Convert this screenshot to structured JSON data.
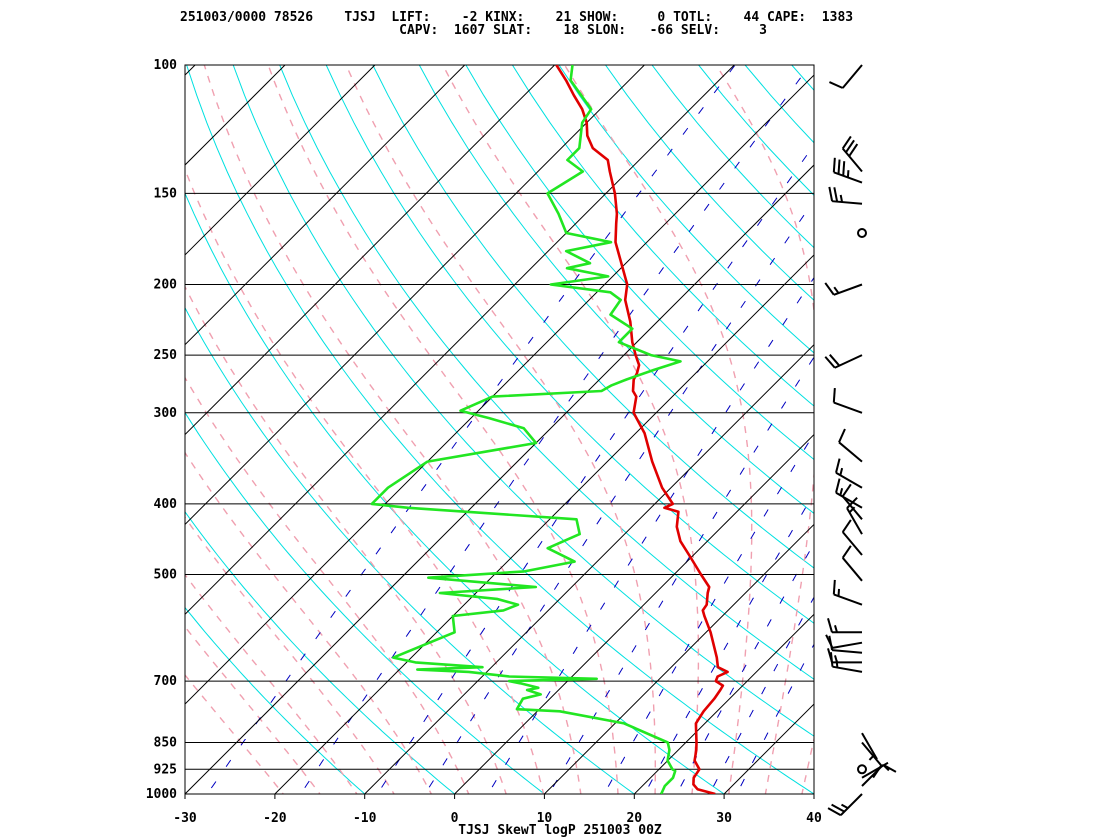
{
  "header": {
    "line1": "251003/0000 78526    TJSJ  LIFT:    -2 KINX:    21 SHOW:     0 TOTL:    44 CAPE:  1383",
    "line2": "                            CAPV:  1607 SLAT:    18 SLON:   -66 SELV:     3"
  },
  "chart_data": {
    "type": "line",
    "title": "TJSJ SkewT logP 251003 00Z",
    "xlabel": "",
    "ylabel": "",
    "x_ticks": [
      -30,
      -20,
      -10,
      0,
      10,
      20,
      30,
      40
    ],
    "y_ticks": [
      100,
      150,
      200,
      250,
      300,
      400,
      500,
      700,
      850,
      925,
      1000
    ],
    "xlim": [
      -30,
      40
    ],
    "ylim": [
      1000,
      100
    ],
    "y_scale": "log",
    "skew": "temperature lines skewed 45 degrees",
    "colors": {
      "temperature": "#e00000",
      "dewpoint": "#22e622",
      "isotherm": "#000000",
      "dry_adiabat": "#00e0e0",
      "moist_adiabat": "#f0a0b0",
      "mixing_ratio": "#0000c0",
      "wind": "#000000"
    },
    "series": [
      {
        "key": "temperature",
        "points": [
          [
            1000,
            29.0
          ],
          [
            985,
            26.5
          ],
          [
            970,
            25.5
          ],
          [
            950,
            24.8
          ],
          [
            925,
            24.5
          ],
          [
            900,
            23.0
          ],
          [
            870,
            22.0
          ],
          [
            850,
            21.2
          ],
          [
            800,
            19.0
          ],
          [
            770,
            18.5
          ],
          [
            740,
            18.3
          ],
          [
            720,
            18.0
          ],
          [
            710,
            17.8
          ],
          [
            700,
            16.5
          ],
          [
            690,
            16.2
          ],
          [
            680,
            16.8
          ],
          [
            670,
            15.2
          ],
          [
            650,
            14.0
          ],
          [
            600,
            10.5
          ],
          [
            570,
            8.0
          ],
          [
            560,
            7.2
          ],
          [
            550,
            7.0
          ],
          [
            530,
            5.8
          ],
          [
            520,
            5.3
          ],
          [
            500,
            3.0
          ],
          [
            470,
            -0.5
          ],
          [
            450,
            -3.0
          ],
          [
            430,
            -5.0
          ],
          [
            410,
            -6.5
          ],
          [
            405,
            -8.5
          ],
          [
            400,
            -8.0
          ],
          [
            380,
            -11.0
          ],
          [
            350,
            -15.0
          ],
          [
            320,
            -19.0
          ],
          [
            300,
            -22.5
          ],
          [
            285,
            -24.0
          ],
          [
            280,
            -25.0
          ],
          [
            270,
            -26.2
          ],
          [
            265,
            -26.5
          ],
          [
            258,
            -27.2
          ],
          [
            250,
            -28.7
          ],
          [
            240,
            -30.5
          ],
          [
            225,
            -33.0
          ],
          [
            210,
            -36.0
          ],
          [
            200,
            -37.5
          ],
          [
            185,
            -41.0
          ],
          [
            175,
            -43.5
          ],
          [
            165,
            -45.5
          ],
          [
            160,
            -46.5
          ],
          [
            150,
            -49.0
          ],
          [
            140,
            -52.0
          ],
          [
            135,
            -53.5
          ],
          [
            130,
            -56.5
          ],
          [
            125,
            -58.5
          ],
          [
            120,
            -60.0
          ],
          [
            115,
            -62.0
          ],
          [
            110,
            -64.5
          ],
          [
            105,
            -67.0
          ],
          [
            100,
            -69.8
          ]
        ]
      },
      {
        "key": "dewpoint",
        "points": [
          [
            1000,
            23.0
          ],
          [
            975,
            22.5
          ],
          [
            950,
            22.5
          ],
          [
            930,
            22.0
          ],
          [
            925,
            21.5
          ],
          [
            900,
            20.0
          ],
          [
            870,
            19.0
          ],
          [
            850,
            18.0
          ],
          [
            800,
            11.0
          ],
          [
            770,
            2.5
          ],
          [
            765,
            -2.5
          ],
          [
            740,
            -3.0
          ],
          [
            730,
            -1.5
          ],
          [
            720,
            -3.5
          ],
          [
            715,
            -2.5
          ],
          [
            705,
            -5.0
          ],
          [
            700,
            -6.5
          ],
          [
            695,
            3.0
          ],
          [
            690,
            -7.0
          ],
          [
            680,
            -12.0
          ],
          [
            675,
            -18.0
          ],
          [
            670,
            -11.0
          ],
          [
            660,
            -19.0
          ],
          [
            650,
            -22.0
          ],
          [
            600,
            -18.0
          ],
          [
            570,
            -20.0
          ],
          [
            560,
            -15.0
          ],
          [
            550,
            -14.0
          ],
          [
            540,
            -17.0
          ],
          [
            530,
            -24.0
          ],
          [
            520,
            -14.0
          ],
          [
            505,
            -27.0
          ],
          [
            495,
            -17.0
          ],
          [
            480,
            -12.5
          ],
          [
            460,
            -17.0
          ],
          [
            440,
            -15.0
          ],
          [
            420,
            -17.0
          ],
          [
            405,
            -37.0
          ],
          [
            400,
            -41.5
          ],
          [
            380,
            -41.5
          ],
          [
            350,
            -40.0
          ],
          [
            330,
            -30.0
          ],
          [
            315,
            -33.0
          ],
          [
            305,
            -38.0
          ],
          [
            298,
            -42.0
          ],
          [
            285,
            -40.0
          ],
          [
            280,
            -28.5
          ],
          [
            275,
            -28.0
          ],
          [
            270,
            -27.0
          ],
          [
            262,
            -25.0
          ],
          [
            255,
            -23.0
          ],
          [
            250,
            -27.0
          ],
          [
            240,
            -32.0
          ],
          [
            230,
            -32.0
          ],
          [
            220,
            -36.0
          ],
          [
            210,
            -36.5
          ],
          [
            205,
            -38.5
          ],
          [
            200,
            -46.0
          ],
          [
            195,
            -40.5
          ],
          [
            190,
            -46.0
          ],
          [
            187,
            -44.0
          ],
          [
            180,
            -48.0
          ],
          [
            175,
            -44.0
          ],
          [
            170,
            -50.0
          ],
          [
            160,
            -53.0
          ],
          [
            150,
            -56.5
          ],
          [
            140,
            -55.0
          ],
          [
            135,
            -58.0
          ],
          [
            130,
            -58.0
          ],
          [
            120,
            -60.5
          ],
          [
            115,
            -61.0
          ],
          [
            105,
            -66.5
          ],
          [
            100,
            -68.0
          ]
        ]
      }
    ],
    "winds": [
      [
        1000,
        225,
        25
      ],
      [
        975,
        45,
        10
      ],
      [
        950,
        60,
        5
      ],
      [
        925,
        0,
        0
      ],
      [
        850,
        140,
        10
      ],
      [
        825,
        150,
        5
      ],
      [
        680,
        280,
        15
      ],
      [
        660,
        270,
        15
      ],
      [
        640,
        275,
        10
      ],
      [
        620,
        260,
        10
      ],
      [
        600,
        270,
        15
      ],
      [
        550,
        290,
        15
      ],
      [
        510,
        320,
        10
      ],
      [
        470,
        320,
        10
      ],
      [
        440,
        330,
        15
      ],
      [
        420,
        320,
        10
      ],
      [
        405,
        300,
        15
      ],
      [
        380,
        300,
        15
      ],
      [
        350,
        310,
        10
      ],
      [
        300,
        290,
        10
      ],
      [
        250,
        245,
        20
      ],
      [
        200,
        250,
        15
      ],
      [
        170,
        0,
        0
      ],
      [
        155,
        275,
        25
      ],
      [
        145,
        290,
        35
      ],
      [
        140,
        320,
        30
      ],
      [
        100,
        220,
        10
      ]
    ]
  }
}
